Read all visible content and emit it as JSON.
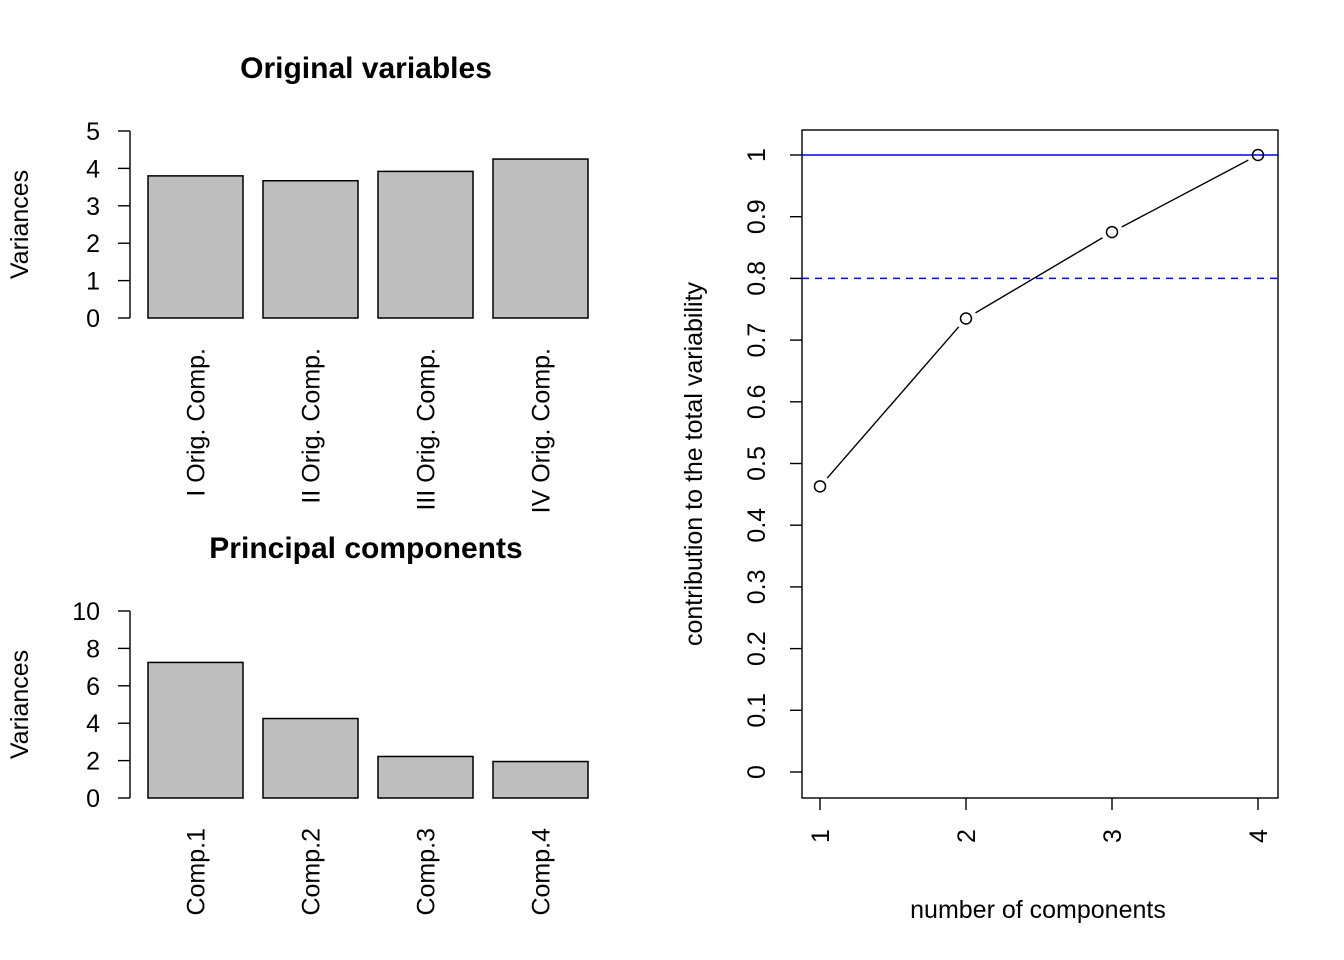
{
  "chart_data": [
    {
      "type": "bar",
      "title": "Original variables",
      "xlabel": "",
      "ylabel": "Variances",
      "categories": [
        "I Orig. Comp.",
        "II Orig. Comp.",
        "III Orig. Comp.",
        "IV Orig. Comp."
      ],
      "values": [
        3.8,
        3.67,
        3.92,
        4.25
      ],
      "ylim": [
        0,
        5
      ],
      "yticks": [
        "0",
        "1",
        "2",
        "3",
        "4",
        "5"
      ],
      "bar_color": "#bebebe"
    },
    {
      "type": "bar",
      "title": "Principal components",
      "xlabel": "",
      "ylabel": "Variances",
      "categories": [
        "Comp.1",
        "Comp.2",
        "Comp.3",
        "Comp.4"
      ],
      "values": [
        7.25,
        4.25,
        2.22,
        1.95
      ],
      "ylim": [
        0,
        10
      ],
      "yticks": [
        "0",
        "2",
        "4",
        "6",
        "8",
        "10"
      ],
      "bar_color": "#bebebe"
    },
    {
      "type": "line",
      "title": "",
      "xlabel": "number of components",
      "ylabel": "contribution to the total variability",
      "x": [
        1,
        2,
        3,
        4
      ],
      "y": [
        0.463,
        0.735,
        0.875,
        1.0
      ],
      "xticks": [
        "1",
        "2",
        "3",
        "4"
      ],
      "yticks": [
        "0",
        "0.1",
        "0.2",
        "0.3",
        "0.4",
        "0.5",
        "0.6",
        "0.7",
        "0.8",
        "0.9",
        "1"
      ],
      "ylim": [
        0,
        1
      ],
      "xlim": [
        1,
        4
      ],
      "reference_lines": [
        {
          "y": 1.0,
          "style": "solid",
          "color": "#0000ff"
        },
        {
          "y": 0.8,
          "style": "dashed",
          "color": "#0000ff"
        }
      ],
      "marker": "open-circle",
      "grid": false
    }
  ]
}
